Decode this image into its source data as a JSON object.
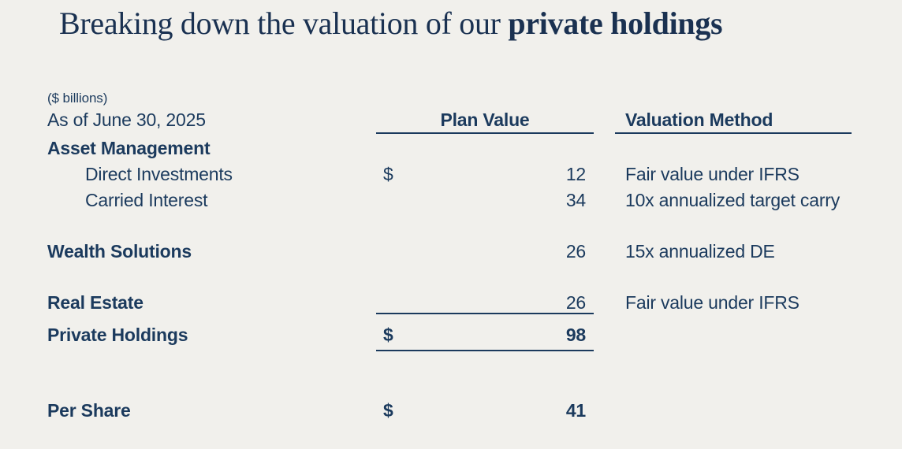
{
  "slide": {
    "title_regular": "Breaking down the valuation of our ",
    "title_bold": "private holdings",
    "units_note": "($ billions)",
    "as_of": "As of June 30, 2025"
  },
  "table": {
    "columns": {
      "plan_value": "Plan Value",
      "valuation_method": "Valuation Method"
    },
    "rows": [
      {
        "label": "Asset Management",
        "currency": "",
        "value": "",
        "method": ""
      },
      {
        "label": "Direct Investments",
        "currency": "$",
        "value": "12",
        "method": "Fair value under IFRS"
      },
      {
        "label": "Carried Interest",
        "currency": "",
        "value": "34",
        "method": "10x annualized target carry"
      },
      {
        "label": "Wealth Solutions",
        "currency": "",
        "value": "26",
        "method": "15x annualized DE"
      },
      {
        "label": "Real Estate",
        "currency": "",
        "value": "26",
        "method": "Fair value under IFRS"
      },
      {
        "label": "Private Holdings",
        "currency": "$",
        "value": "98",
        "method": ""
      },
      {
        "label": "Per Share",
        "currency": "$",
        "value": "41",
        "method": ""
      }
    ]
  },
  "colors": {
    "background": "#f1f0ec",
    "navy": "#1b3a5d"
  }
}
